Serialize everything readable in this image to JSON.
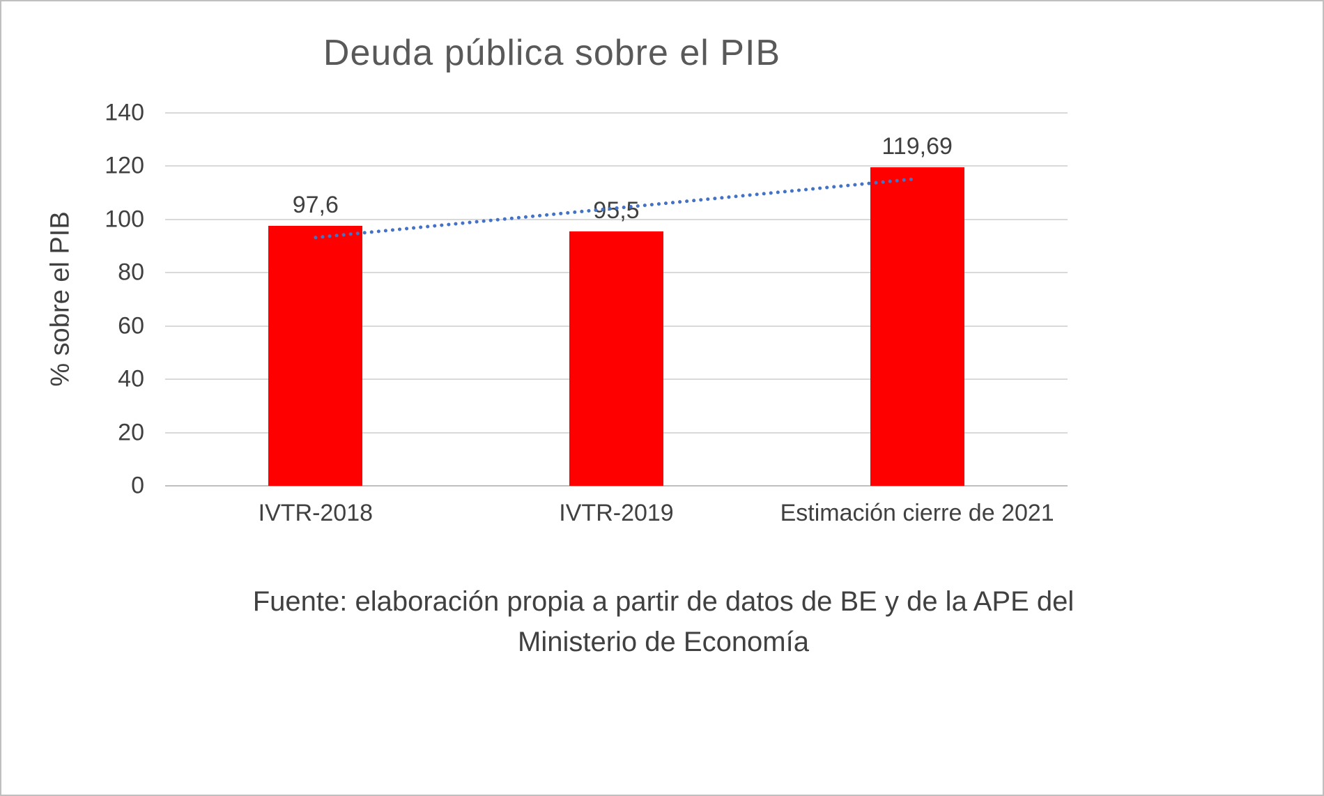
{
  "chart_data": {
    "type": "bar",
    "title": "Deuda pública sobre el PIB",
    "categories": [
      "IVTR-2018",
      "IVTR-2019",
      "Estimación cierre de 2021"
    ],
    "values": [
      97.6,
      95.5,
      119.69
    ],
    "value_labels": [
      "97,6",
      "95,5",
      "119,69"
    ],
    "xlabel": "",
    "ylabel": "% sobre el PIB",
    "ylim": [
      0,
      140
    ],
    "yticks": [
      0,
      20,
      40,
      60,
      80,
      100,
      120,
      140
    ],
    "grid": true,
    "legend_position": "none",
    "bar_color": "#ff0000",
    "trendline": {
      "type": "linear",
      "style": "dotted",
      "color": "#4472c4"
    }
  },
  "caption": {
    "line1": "Fuente: elaboración propia a partir de datos de BE y de la APE del",
    "line2": "Ministerio de Economía"
  }
}
